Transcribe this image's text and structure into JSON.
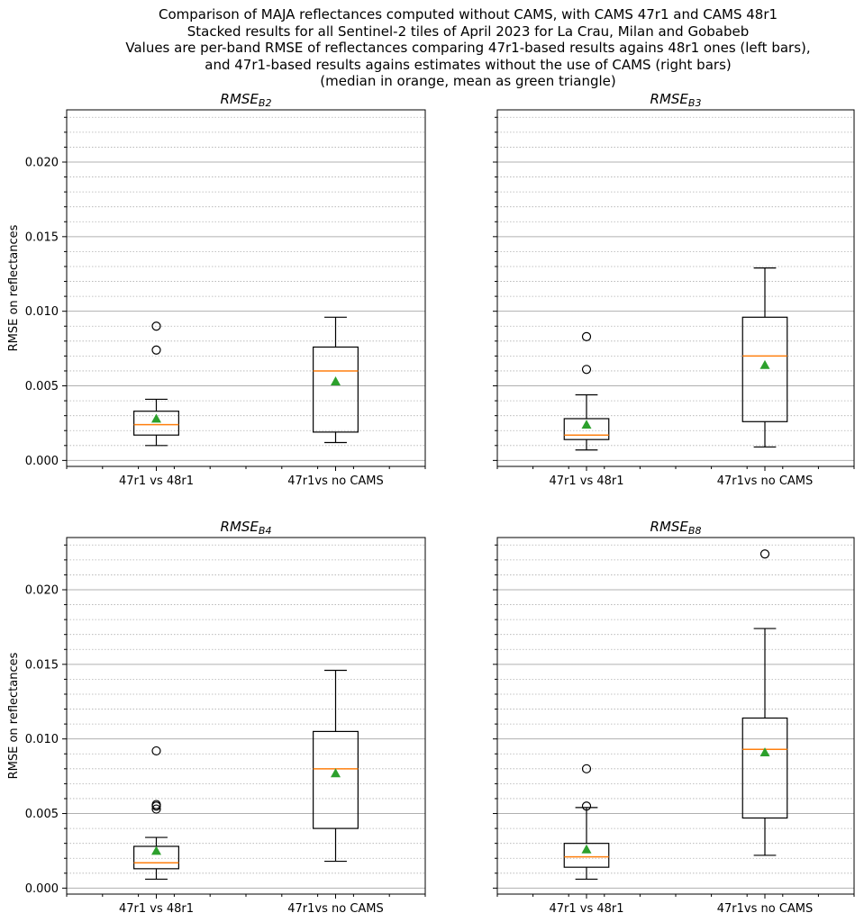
{
  "title_lines": [
    "Comparison of MAJA reflectances computed without CAMS, with CAMS 47r1 and CAMS 48r1",
    "Stacked results for all Sentinel-2 tiles of April 2023 for La Crau, Milan and Gobabeb",
    "Values are per-band RMSE of reflectances comparing 47r1-based results agains 48r1 ones (left bars),",
    "and 47r1-based results agains estimates without the use of CAMS (right bars)",
    "(median in orange, mean as green triangle)"
  ],
  "colors": {
    "median": "#ff7f0e",
    "mean": "#2ca02c",
    "box": "#000000",
    "grid_major": "#b0b0b0",
    "grid_minor": "#b0b0b0"
  },
  "chart_data": [
    {
      "type": "box",
      "title_base": "RMSE",
      "title_sub": "B2",
      "ylabel": "RMSE on reflectances",
      "ylim": [
        -0.0004,
        0.0235
      ],
      "yticks": [
        "0.000",
        "0.005",
        "0.010",
        "0.015",
        "0.020"
      ],
      "grid": "major solid, minor dotted",
      "categories": [
        "47r1 vs 48r1",
        "47r1vs no CAMS"
      ],
      "boxes": [
        {
          "q1": 0.0017,
          "median": 0.0024,
          "q3": 0.0033,
          "whisker_low": 0.001,
          "whisker_high": 0.0041,
          "mean": 0.0028,
          "outliers": [
            0.0074,
            0.009
          ]
        },
        {
          "q1": 0.0019,
          "median": 0.006,
          "q3": 0.0076,
          "whisker_low": 0.0012,
          "whisker_high": 0.0096,
          "mean": 0.0053,
          "outliers": []
        }
      ]
    },
    {
      "type": "box",
      "title_base": "RMSE",
      "title_sub": "B3",
      "ylabel": "",
      "ylim": [
        -0.0004,
        0.0235
      ],
      "yticks": [],
      "grid": "major solid, minor dotted",
      "categories": [
        "47r1 vs 48r1",
        "47r1vs no CAMS"
      ],
      "boxes": [
        {
          "q1": 0.0014,
          "median": 0.0017,
          "q3": 0.0028,
          "whisker_low": 0.0007,
          "whisker_high": 0.0044,
          "mean": 0.0024,
          "outliers": [
            0.0061,
            0.0083
          ]
        },
        {
          "q1": 0.0026,
          "median": 0.007,
          "q3": 0.0096,
          "whisker_low": 0.0009,
          "whisker_high": 0.0129,
          "mean": 0.0064,
          "outliers": []
        }
      ]
    },
    {
      "type": "box",
      "title_base": "RMSE",
      "title_sub": "B4",
      "ylabel": "RMSE on reflectances",
      "ylim": [
        -0.0004,
        0.0235
      ],
      "yticks": [
        "0.000",
        "0.005",
        "0.010",
        "0.015",
        "0.020"
      ],
      "grid": "major solid, minor dotted",
      "categories": [
        "47r1 vs 48r1",
        "47r1vs no CAMS"
      ],
      "boxes": [
        {
          "q1": 0.0013,
          "median": 0.0017,
          "q3": 0.0028,
          "whisker_low": 0.0006,
          "whisker_high": 0.0034,
          "mean": 0.0025,
          "outliers": [
            0.0053,
            0.0055,
            0.0056,
            0.0092
          ]
        },
        {
          "q1": 0.004,
          "median": 0.008,
          "q3": 0.0105,
          "whisker_low": 0.0018,
          "whisker_high": 0.0146,
          "mean": 0.0077,
          "outliers": []
        }
      ]
    },
    {
      "type": "box",
      "title_base": "RMSE",
      "title_sub": "B8",
      "ylabel": "",
      "ylim": [
        -0.0004,
        0.0235
      ],
      "yticks": [],
      "grid": "major solid, minor dotted",
      "categories": [
        "47r1 vs 48r1",
        "47r1vs no CAMS"
      ],
      "boxes": [
        {
          "q1": 0.0014,
          "median": 0.0021,
          "q3": 0.003,
          "whisker_low": 0.0006,
          "whisker_high": 0.0054,
          "mean": 0.0026,
          "outliers": [
            0.0055,
            0.008
          ]
        },
        {
          "q1": 0.0047,
          "median": 0.0093,
          "q3": 0.0114,
          "whisker_low": 0.0022,
          "whisker_high": 0.0174,
          "mean": 0.0091,
          "outliers": [
            0.0224
          ]
        }
      ]
    }
  ]
}
